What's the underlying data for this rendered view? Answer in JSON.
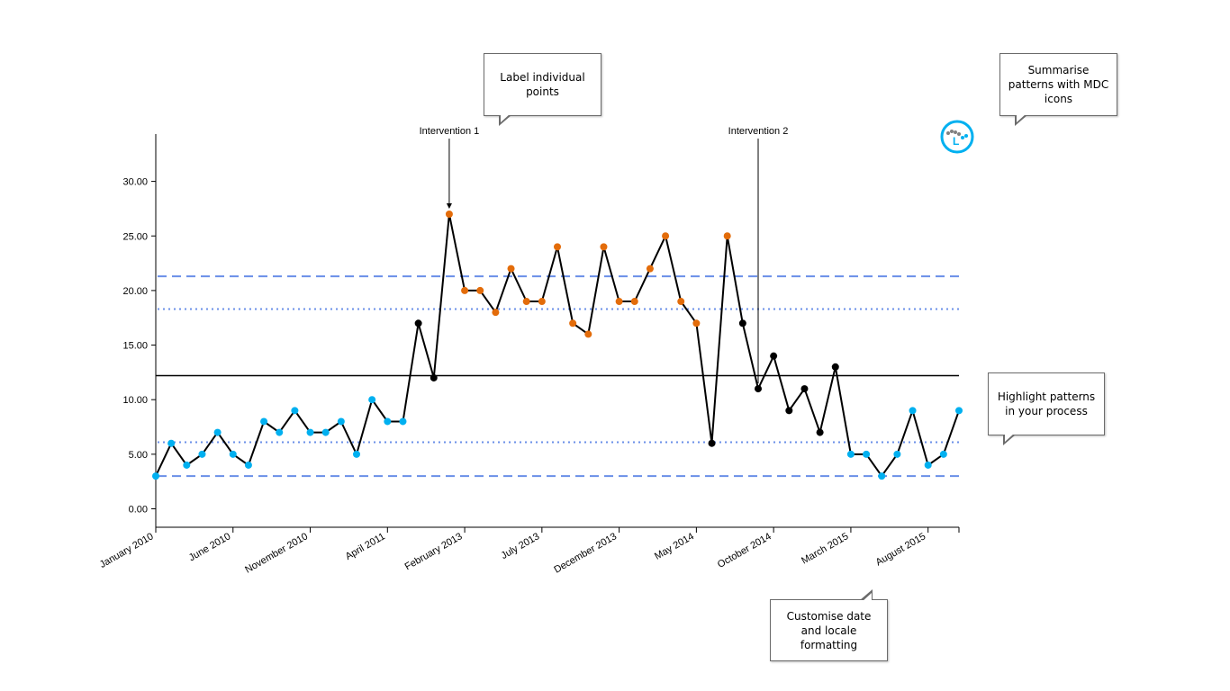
{
  "chart_data": {
    "type": "line",
    "title": "",
    "xlabel": "",
    "ylabel": "",
    "ylim": [
      0,
      35
    ],
    "y_ticks": [
      "0.00",
      "5.00",
      "10.00",
      "15.00",
      "20.00",
      "25.00",
      "30.00"
    ],
    "x_tick_labels": [
      "January 2010",
      "June 2010",
      "November 2010",
      "April 2011",
      "February 2013",
      "July 2013",
      "December 2013",
      "May 2014",
      "October 2014",
      "March 2015",
      "August 2015"
    ],
    "x_tick_indices": [
      0,
      5,
      10,
      15,
      20,
      25,
      30,
      35,
      40,
      45,
      50
    ],
    "series": [
      {
        "values": [
          3,
          6,
          4,
          5,
          7,
          5,
          4,
          8,
          7,
          9,
          7,
          7,
          8,
          5,
          10,
          8,
          8,
          17,
          12,
          27,
          20,
          20,
          18,
          22,
          19,
          19,
          24,
          17,
          16,
          24,
          19,
          19,
          22,
          25,
          19,
          17,
          6,
          25,
          17,
          11,
          14,
          9,
          11,
          7,
          13,
          5,
          5,
          3,
          5,
          9,
          4,
          5,
          9
        ],
        "point_status": [
          "low",
          "low",
          "low",
          "low",
          "low",
          "low",
          "low",
          "low",
          "low",
          "low",
          "low",
          "low",
          "low",
          "low",
          "low",
          "low",
          "low",
          "normal",
          "normal",
          "high",
          "high",
          "high",
          "high",
          "high",
          "high",
          "high",
          "high",
          "high",
          "high",
          "high",
          "high",
          "high",
          "high",
          "high",
          "high",
          "high",
          "normal",
          "high",
          "normal",
          "normal",
          "normal",
          "normal",
          "normal",
          "normal",
          "normal",
          "low",
          "low",
          "low",
          "low",
          "low",
          "low",
          "low",
          "low"
        ]
      }
    ],
    "reference_lines": {
      "centre": 12.2,
      "upper_control": 21.3,
      "lower_control": 3.0,
      "upper_warning": 18.3,
      "lower_warning": 6.1
    },
    "annotations": [
      {
        "label": "Intervention 1",
        "index": 19
      },
      {
        "label": "Intervention 2",
        "index": 39
      }
    ],
    "colors": {
      "line": "#000000",
      "normal": "#000000",
      "high": "#e36c0a",
      "low": "#00b0f0",
      "control_limits": "#6a8fe8",
      "warning_limits": "#6a8fe8",
      "centre": "#000000"
    },
    "grid": false,
    "legend": "none"
  },
  "callouts": {
    "label_points": "Label individual points",
    "mdc_icons": "Summarise patterns with MDC icons",
    "highlight": "Highlight patterns in your process",
    "date_format": "Customise date and locale formatting"
  },
  "icons": {
    "mdc": "variation-icon"
  }
}
